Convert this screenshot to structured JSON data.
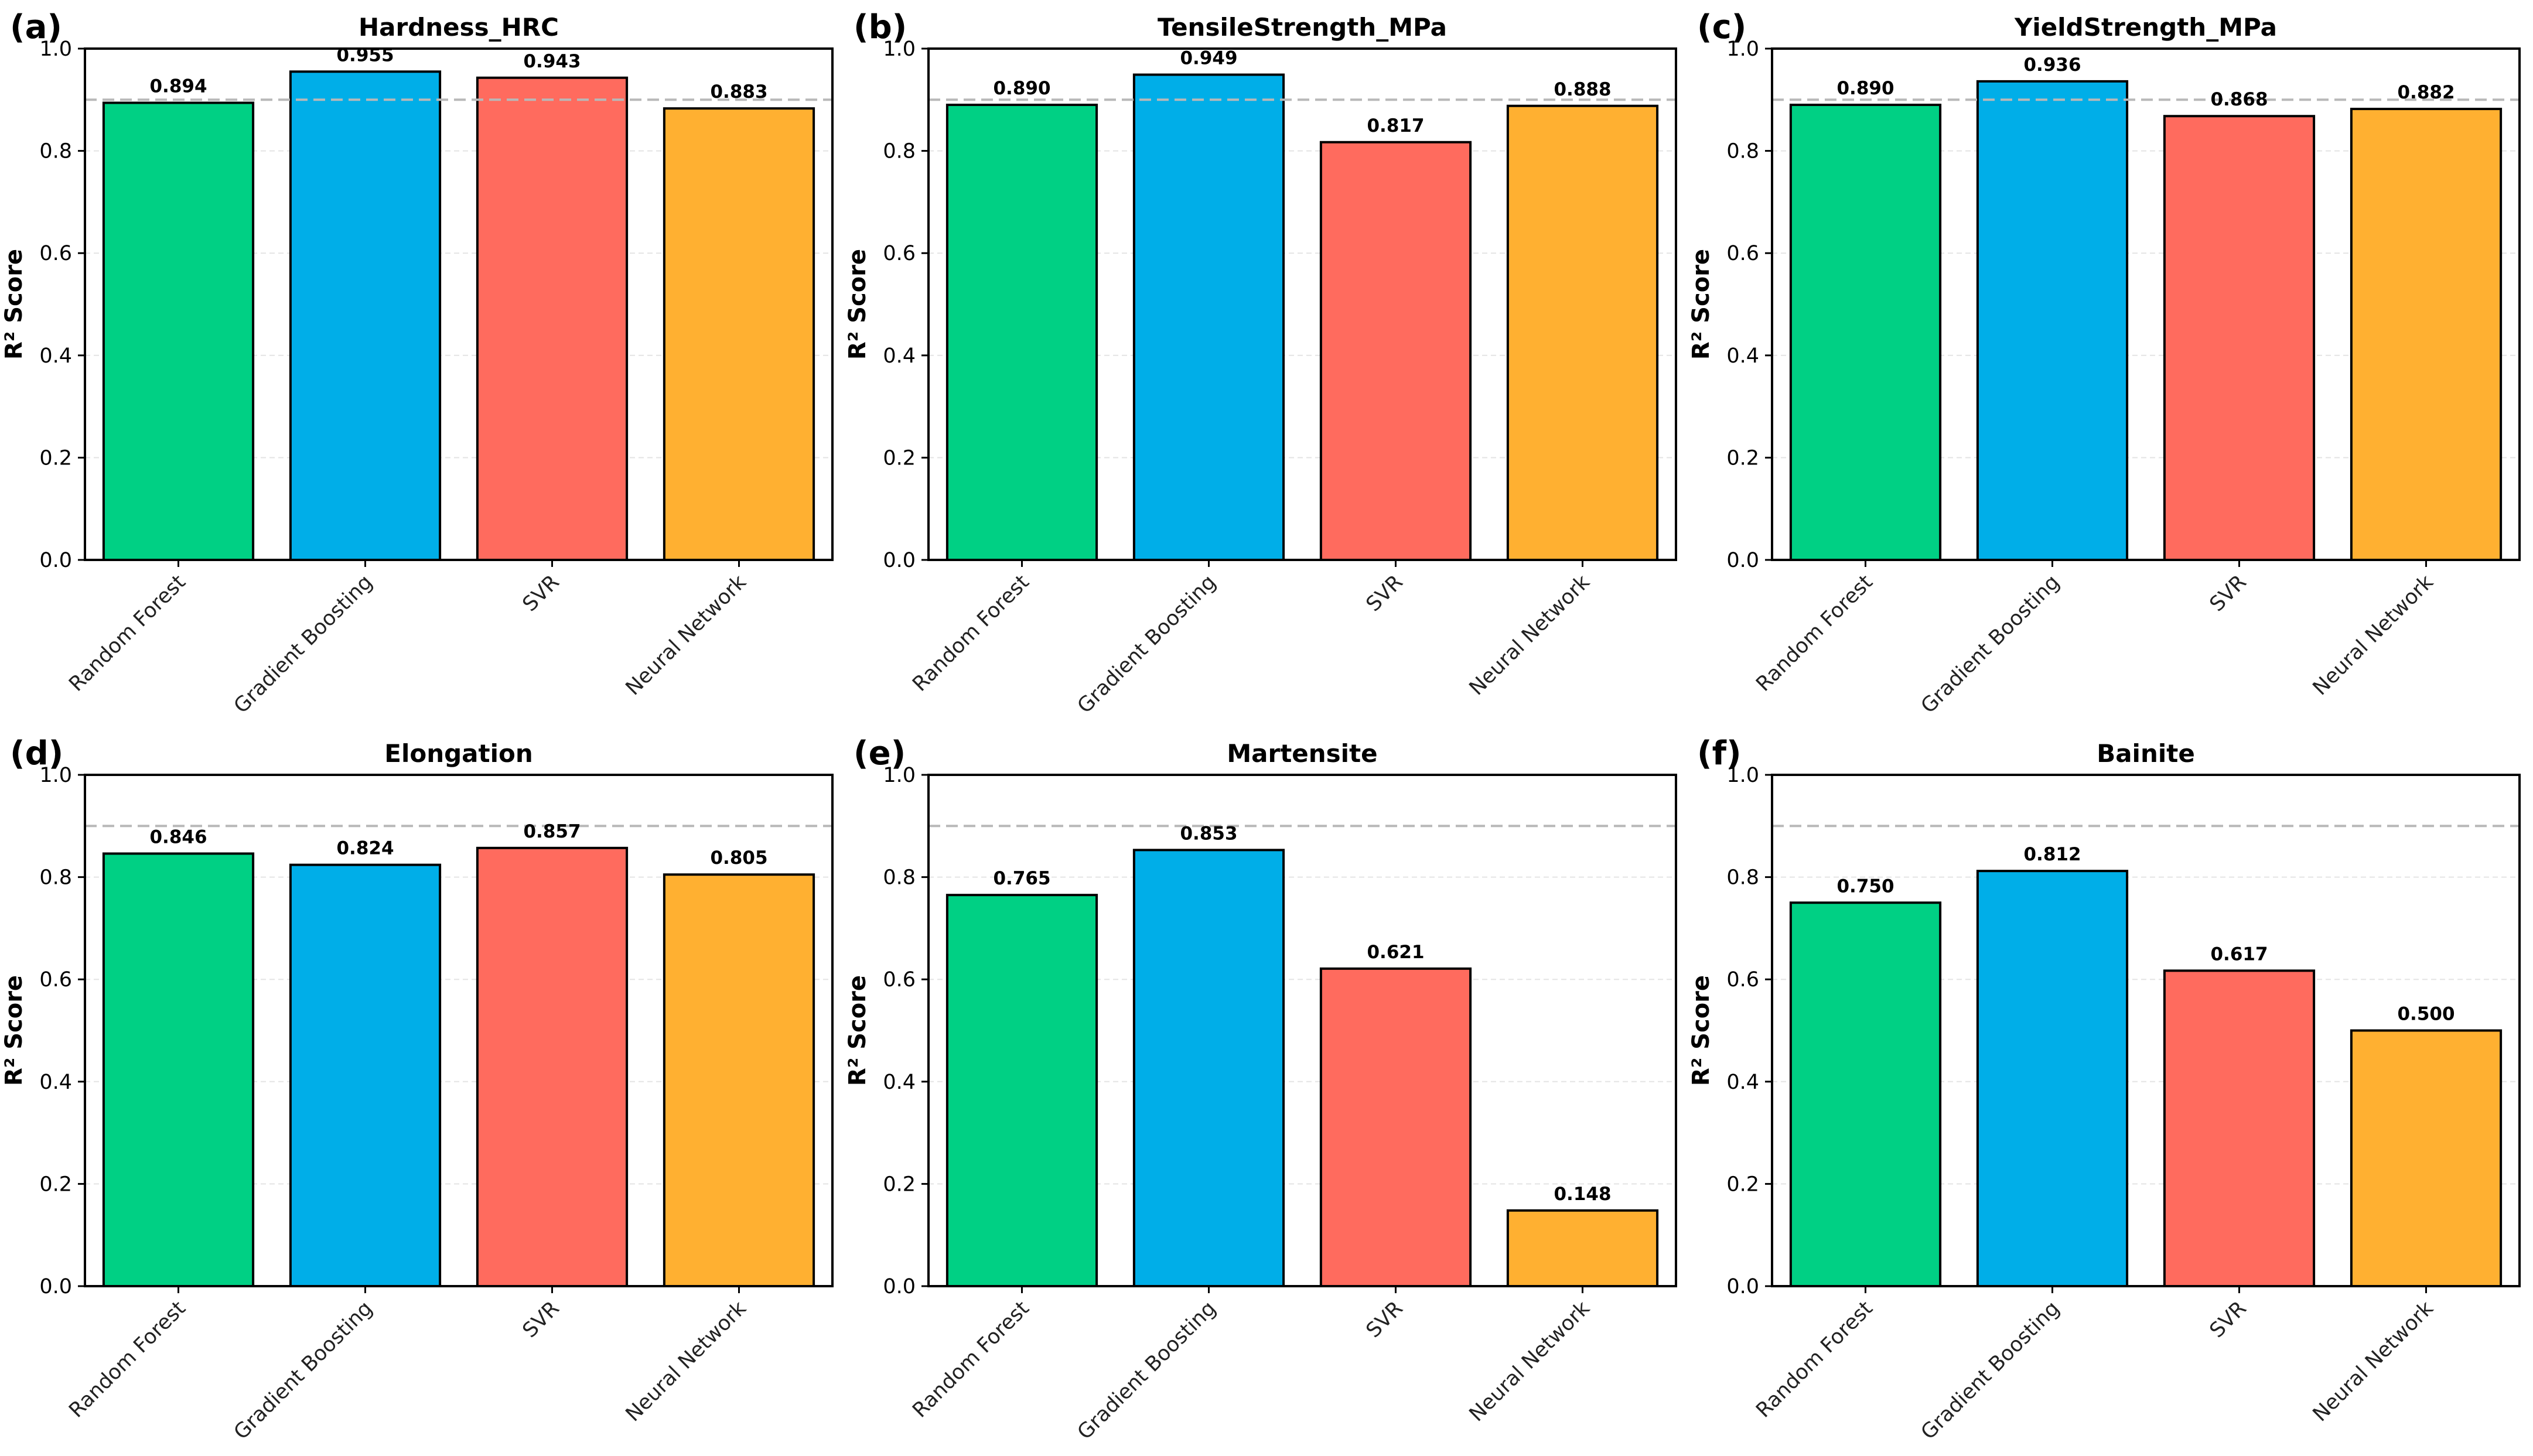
{
  "chart_data": [
    {
      "type": "bar",
      "panel_label": "(a)",
      "title": "Hardness_HRC",
      "ylabel": "R² Score",
      "ylim": [
        0.0,
        1.0
      ],
      "yticks": [
        "0.0",
        "0.2",
        "0.4",
        "0.6",
        "0.8",
        "1.0"
      ],
      "categories": [
        "Random Forest",
        "Gradient Boosting",
        "SVR",
        "Neural Network"
      ],
      "values": [
        0.894,
        0.955,
        0.943,
        0.883
      ],
      "value_labels": [
        "0.894",
        "0.955",
        "0.943",
        "0.883"
      ],
      "reference_line": 0.9,
      "colors": [
        "#00d084",
        "#00aee8",
        "#ff6b5e",
        "#ffb031"
      ]
    },
    {
      "type": "bar",
      "panel_label": "(b)",
      "title": "TensileStrength_MPa",
      "ylabel": "R² Score",
      "ylim": [
        0.0,
        1.0
      ],
      "yticks": [
        "0.0",
        "0.2",
        "0.4",
        "0.6",
        "0.8",
        "1.0"
      ],
      "categories": [
        "Random Forest",
        "Gradient Boosting",
        "SVR",
        "Neural Network"
      ],
      "values": [
        0.89,
        0.949,
        0.817,
        0.888
      ],
      "value_labels": [
        "0.890",
        "0.949",
        "0.817",
        "0.888"
      ],
      "reference_line": 0.9,
      "colors": [
        "#00d084",
        "#00aee8",
        "#ff6b5e",
        "#ffb031"
      ]
    },
    {
      "type": "bar",
      "panel_label": "(c)",
      "title": "YieldStrength_MPa",
      "ylabel": "R² Score",
      "ylim": [
        0.0,
        1.0
      ],
      "yticks": [
        "0.0",
        "0.2",
        "0.4",
        "0.6",
        "0.8",
        "1.0"
      ],
      "categories": [
        "Random Forest",
        "Gradient Boosting",
        "SVR",
        "Neural Network"
      ],
      "values": [
        0.89,
        0.936,
        0.868,
        0.882
      ],
      "value_labels": [
        "0.890",
        "0.936",
        "0.868",
        "0.882"
      ],
      "reference_line": 0.9,
      "colors": [
        "#00d084",
        "#00aee8",
        "#ff6b5e",
        "#ffb031"
      ]
    },
    {
      "type": "bar",
      "panel_label": "(d)",
      "title": "Elongation",
      "ylabel": "R² Score",
      "ylim": [
        0.0,
        1.0
      ],
      "yticks": [
        "0.0",
        "0.2",
        "0.4",
        "0.6",
        "0.8",
        "1.0"
      ],
      "categories": [
        "Random Forest",
        "Gradient Boosting",
        "SVR",
        "Neural Network"
      ],
      "values": [
        0.846,
        0.824,
        0.857,
        0.805
      ],
      "value_labels": [
        "0.846",
        "0.824",
        "0.857",
        "0.805"
      ],
      "reference_line": 0.9,
      "colors": [
        "#00d084",
        "#00aee8",
        "#ff6b5e",
        "#ffb031"
      ]
    },
    {
      "type": "bar",
      "panel_label": "(e)",
      "title": "Martensite",
      "ylabel": "R² Score",
      "ylim": [
        0.0,
        1.0
      ],
      "yticks": [
        "0.0",
        "0.2",
        "0.4",
        "0.6",
        "0.8",
        "1.0"
      ],
      "categories": [
        "Random Forest",
        "Gradient Boosting",
        "SVR",
        "Neural Network"
      ],
      "values": [
        0.765,
        0.853,
        0.621,
        0.148
      ],
      "value_labels": [
        "0.765",
        "0.853",
        "0.621",
        "0.148"
      ],
      "reference_line": 0.9,
      "colors": [
        "#00d084",
        "#00aee8",
        "#ff6b5e",
        "#ffb031"
      ]
    },
    {
      "type": "bar",
      "panel_label": "(f)",
      "title": "Bainite",
      "ylabel": "R² Score",
      "ylim": [
        0.0,
        1.0
      ],
      "yticks": [
        "0.0",
        "0.2",
        "0.4",
        "0.6",
        "0.8",
        "1.0"
      ],
      "categories": [
        "Random Forest",
        "Gradient Boosting",
        "SVR",
        "Neural Network"
      ],
      "values": [
        0.75,
        0.812,
        0.617,
        0.5
      ],
      "value_labels": [
        "0.750",
        "0.812",
        "0.617",
        "0.500"
      ],
      "reference_line": 0.9,
      "colors": [
        "#00d084",
        "#00aee8",
        "#ff6b5e",
        "#ffb031"
      ]
    }
  ]
}
